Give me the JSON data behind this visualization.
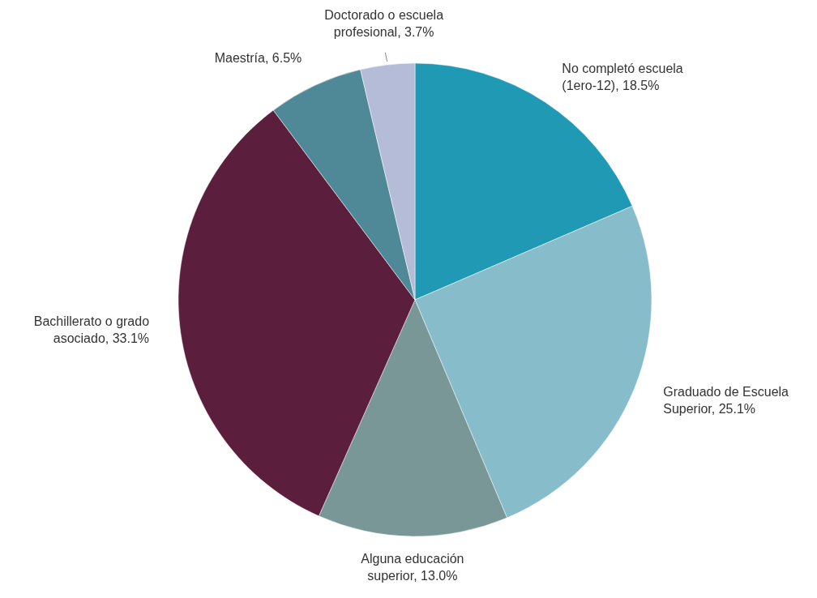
{
  "chart_data": {
    "type": "pie",
    "categories": [
      "No completó escuela (1ero-12)",
      "Graduado de Escuela Superior",
      "Alguna educación superior",
      "Bachillerato o grado asociado",
      "Maestría",
      "Doctorado o escuela profesional"
    ],
    "values": [
      18.5,
      25.1,
      13.0,
      33.1,
      6.5,
      3.7
    ],
    "value_labels": [
      "18.5%",
      "25.1%",
      "13.0%",
      "33.1%",
      "6.5%",
      "3.7%"
    ],
    "colors": [
      "#1f99b4",
      "#87bdca",
      "#7a9798",
      "#5b1f3d",
      "#4f8896",
      "#b4bcd7"
    ]
  }
}
